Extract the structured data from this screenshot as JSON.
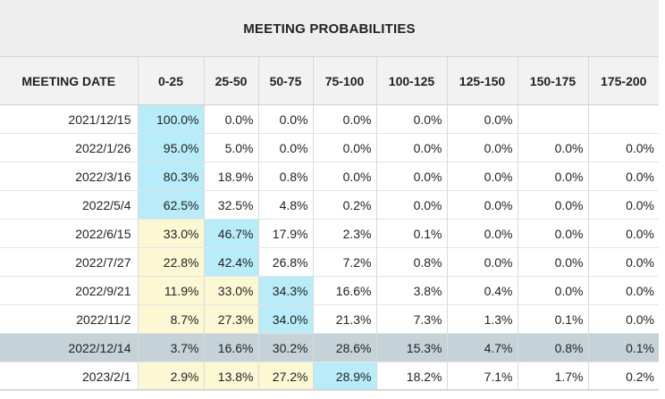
{
  "title": "MEETING PROBABILITIES",
  "colors": {
    "header_bg": "#eeeeee",
    "highlight_yellow": "#fcf8d4",
    "highlight_cyan": "#b8ecf8",
    "selected_row": "#c5d3d9"
  },
  "columns": [
    "MEETING DATE",
    "0-25",
    "25-50",
    "50-75",
    "75-100",
    "100-125",
    "125-150",
    "150-175",
    "175-200"
  ],
  "rows": [
    {
      "date": "2021/12/15",
      "values": [
        "100.0%",
        "0.0%",
        "0.0%",
        "0.0%",
        "0.0%",
        "0.0%",
        "",
        ""
      ],
      "highlights": {
        "0": "cyan"
      },
      "selected": false
    },
    {
      "date": "2022/1/26",
      "values": [
        "95.0%",
        "5.0%",
        "0.0%",
        "0.0%",
        "0.0%",
        "0.0%",
        "0.0%",
        "0.0%"
      ],
      "highlights": {
        "0": "cyan"
      },
      "selected": false
    },
    {
      "date": "2022/3/16",
      "values": [
        "80.3%",
        "18.9%",
        "0.8%",
        "0.0%",
        "0.0%",
        "0.0%",
        "0.0%",
        "0.0%"
      ],
      "highlights": {
        "0": "cyan"
      },
      "selected": false
    },
    {
      "date": "2022/5/4",
      "values": [
        "62.5%",
        "32.5%",
        "4.8%",
        "0.2%",
        "0.0%",
        "0.0%",
        "0.0%",
        "0.0%"
      ],
      "highlights": {
        "0": "cyan"
      },
      "selected": false
    },
    {
      "date": "2022/6/15",
      "values": [
        "33.0%",
        "46.7%",
        "17.9%",
        "2.3%",
        "0.1%",
        "0.0%",
        "0.0%",
        "0.0%"
      ],
      "highlights": {
        "0": "yellow",
        "1": "cyan"
      },
      "selected": false
    },
    {
      "date": "2022/7/27",
      "values": [
        "22.8%",
        "42.4%",
        "26.8%",
        "7.2%",
        "0.8%",
        "0.0%",
        "0.0%",
        "0.0%"
      ],
      "highlights": {
        "0": "yellow",
        "1": "cyan"
      },
      "selected": false
    },
    {
      "date": "2022/9/21",
      "values": [
        "11.9%",
        "33.0%",
        "34.3%",
        "16.6%",
        "3.8%",
        "0.4%",
        "0.0%",
        "0.0%"
      ],
      "highlights": {
        "0": "yellow",
        "1": "yellow",
        "2": "cyan"
      },
      "selected": false
    },
    {
      "date": "2022/11/2",
      "values": [
        "8.7%",
        "27.3%",
        "34.0%",
        "21.3%",
        "7.3%",
        "1.3%",
        "0.1%",
        "0.0%"
      ],
      "highlights": {
        "0": "yellow",
        "1": "yellow",
        "2": "cyan"
      },
      "selected": false
    },
    {
      "date": "2022/12/14",
      "values": [
        "3.7%",
        "16.6%",
        "30.2%",
        "28.6%",
        "15.3%",
        "4.7%",
        "0.8%",
        "0.1%"
      ],
      "highlights": {},
      "selected": true
    },
    {
      "date": "2023/2/1",
      "values": [
        "2.9%",
        "13.8%",
        "27.2%",
        "28.9%",
        "18.2%",
        "7.1%",
        "1.7%",
        "0.2%"
      ],
      "highlights": {
        "0": "yellow",
        "1": "yellow",
        "2": "yellow",
        "3": "cyan"
      },
      "selected": false
    }
  ]
}
